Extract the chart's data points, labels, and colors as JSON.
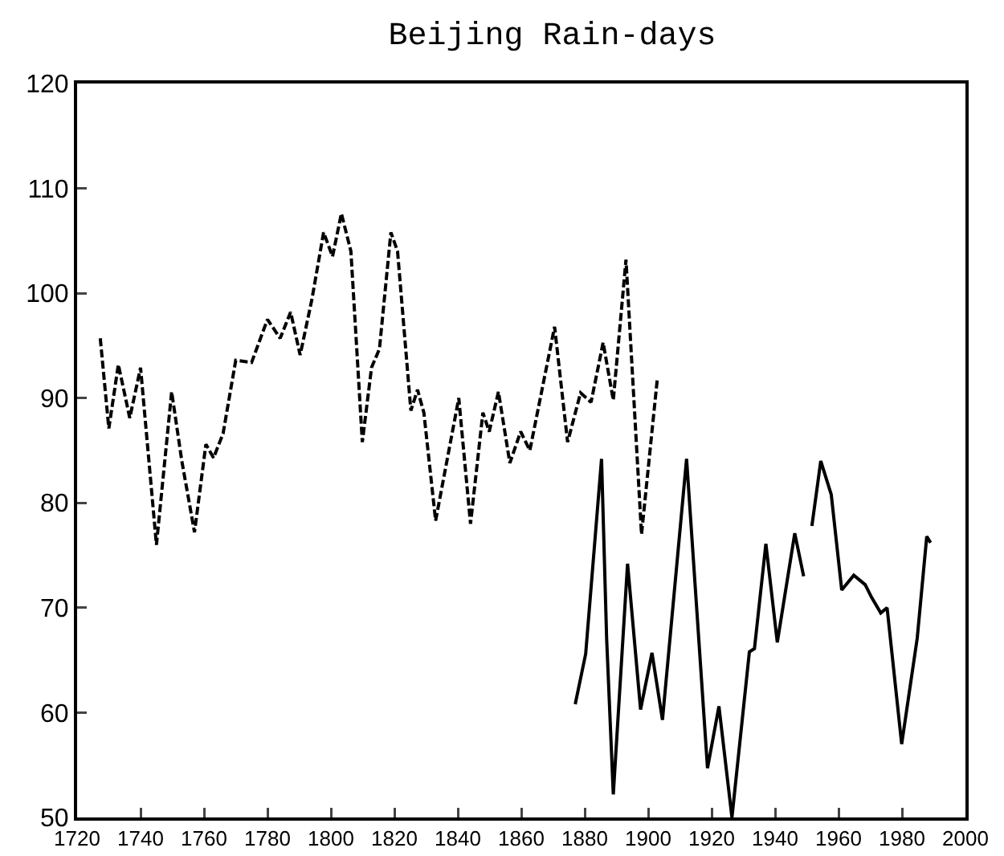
{
  "chart_data": {
    "type": "line",
    "title": "Beijing Rain-days",
    "xlim": [
      1720,
      2000
    ],
    "xticks": [
      1720,
      1740,
      1760,
      1780,
      1800,
      1820,
      1840,
      1860,
      1880,
      1900,
      1920,
      1940,
      1960,
      1980,
      2000
    ],
    "ylim": [
      50,
      120
    ],
    "yticks": [
      50,
      60,
      70,
      80,
      90,
      100,
      110,
      120
    ],
    "series": [
      {
        "color": "#000000",
        "line_style": "dashed",
        "x": [
          1727.3,
          1730,
          1733,
          1736.6,
          1740,
          1745,
          1749.8,
          1753,
          1757,
          1760.6,
          1763,
          1766,
          1770,
          1775,
          1780,
          1784,
          1787.3,
          1790.3,
          1794,
          1797.7,
          1800.5,
          1803.3,
          1806.3,
          1809.9,
          1812.8,
          1815.3,
          1818.9,
          1821,
          1825.2,
          1827.3,
          1829.3,
          1833,
          1840.3,
          1844,
          1847.9,
          1849.9,
          1852.8,
          1856.4,
          1859.8,
          1862.7,
          1870.5,
          1874.6,
          1878.7,
          1882,
          1885.8,
          1889,
          1893,
          1897.9,
          1902.9
        ],
        "values": [
          95.7,
          87.1,
          93.2,
          88.1,
          92.9,
          76,
          90.6,
          84,
          77.2,
          85.6,
          84.3,
          86.6,
          93.6,
          93.4,
          97.5,
          95.7,
          98.2,
          94.1,
          99.4,
          105.8,
          103.5,
          107.6,
          104,
          85.8,
          92.9,
          94.7,
          105.8,
          104,
          88.8,
          90.8,
          88.6,
          78.3,
          90,
          78,
          88.6,
          86.8,
          90.6,
          83.8,
          86.8,
          85,
          96.8,
          85.8,
          90.5,
          89.6,
          95.3,
          89.8,
          103.2,
          77,
          91.9
        ]
      },
      {
        "color": "#000000",
        "line_style": "solid",
        "x": [
          1877,
          1880.3,
          1885.3,
          1886.9,
          1889,
          1893.5,
          1897.6,
          1901.2,
          1904.5,
          1912.1,
          1918.7,
          1922.3,
          1926.4,
          1931.9,
          1933.5,
          1937.1,
          1940.7,
          1946.2,
          1949,
          1950.5,
          1951.6,
          1954.4,
          1957.7,
          1961,
          1964.8,
          1968.4,
          1970.4,
          1973.3,
          1975.3,
          1979.9,
          1984.8,
          1987.8,
          1989
        ],
        "values": [
          60.8,
          65.6,
          84.2,
          67.1,
          52.2,
          74.2,
          60.3,
          65.7,
          59.3,
          84.2,
          54.7,
          60.6,
          50,
          65.8,
          66.1,
          76.1,
          66.7,
          77.1,
          73,
          null,
          77.8,
          84,
          80.8,
          71.7,
          73.1,
          72.2,
          71,
          69.5,
          70,
          57,
          67.1,
          76.8,
          76.2
        ]
      }
    ]
  }
}
